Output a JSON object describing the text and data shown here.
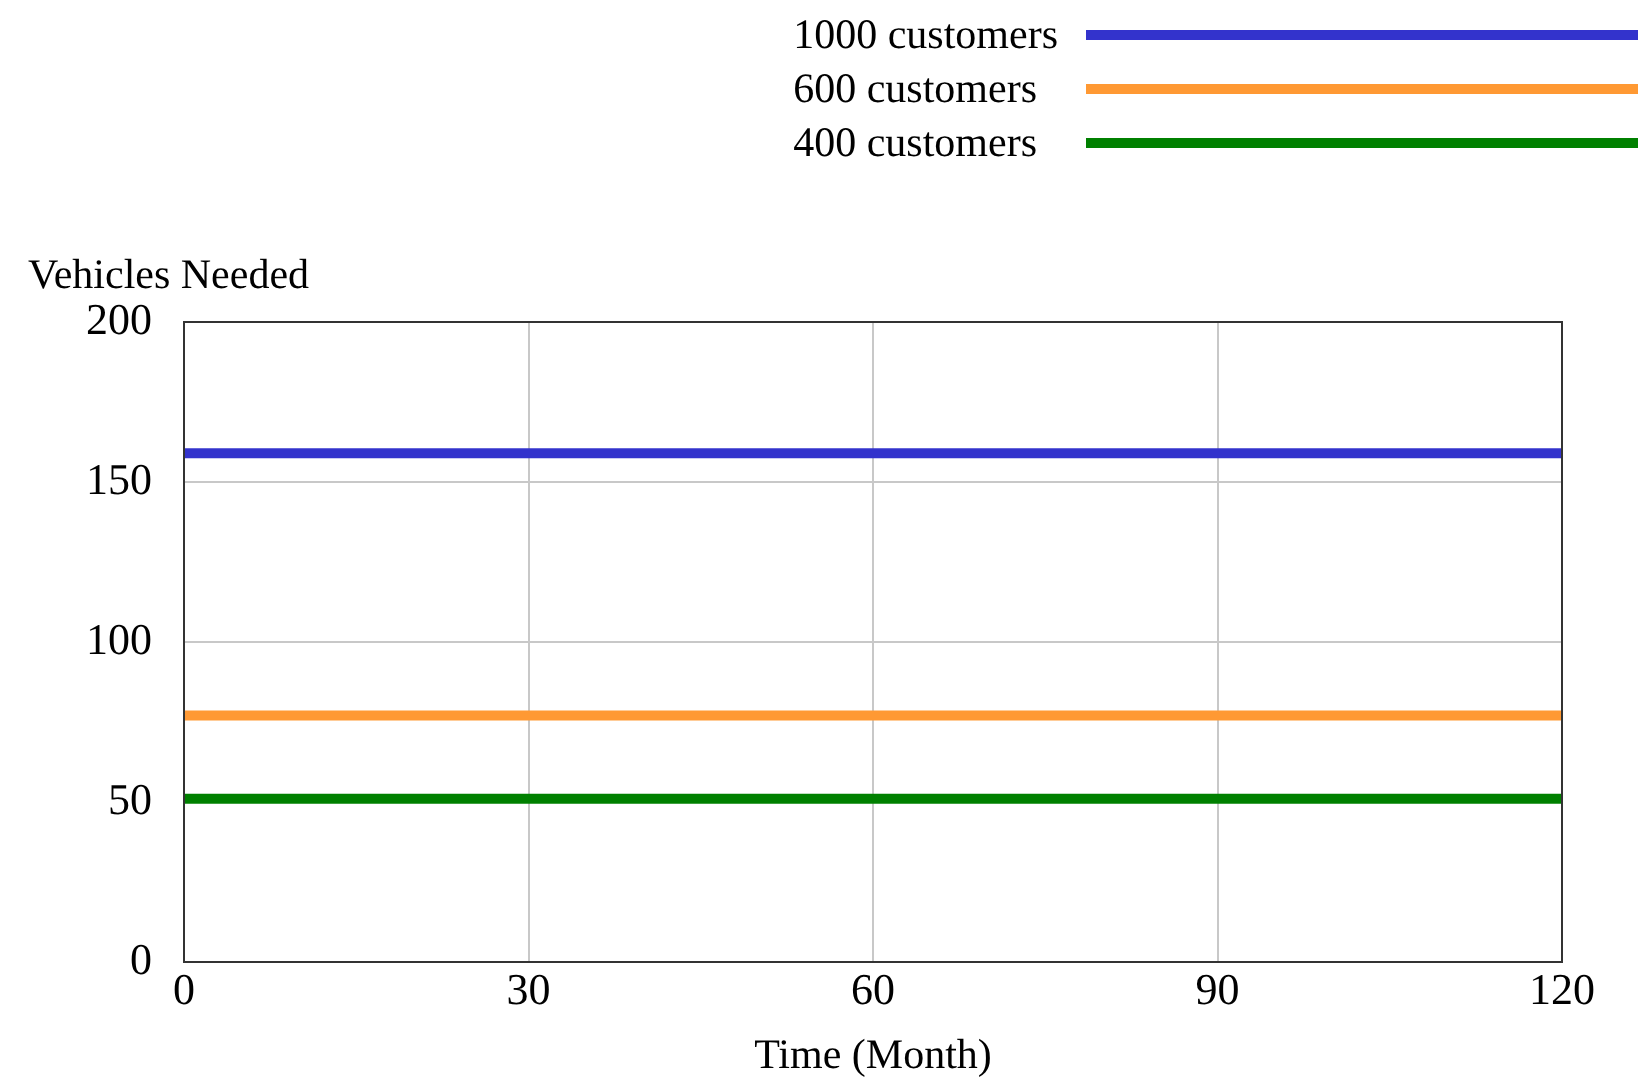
{
  "chart_data": {
    "type": "line",
    "xlabel": "Time (Month)",
    "ylabel": "Vehicles Needed",
    "x": [
      0,
      120
    ],
    "series": [
      {
        "name": "1000 customers",
        "color": "#3333cc",
        "values": [
          159,
          159
        ]
      },
      {
        "name": "600 customers",
        "color": "#ff9933",
        "values": [
          77,
          77
        ]
      },
      {
        "name": "400 customers",
        "color": "#008000",
        "values": [
          51,
          51
        ]
      }
    ],
    "xlim": [
      0,
      120
    ],
    "xticks": [
      0,
      30,
      60,
      90,
      120
    ],
    "ylim": [
      0,
      200
    ],
    "yticks": [
      0,
      50,
      100,
      150,
      200
    ],
    "grid": true,
    "legend": "top right",
    "marker": "none",
    "line_style": "solid"
  }
}
